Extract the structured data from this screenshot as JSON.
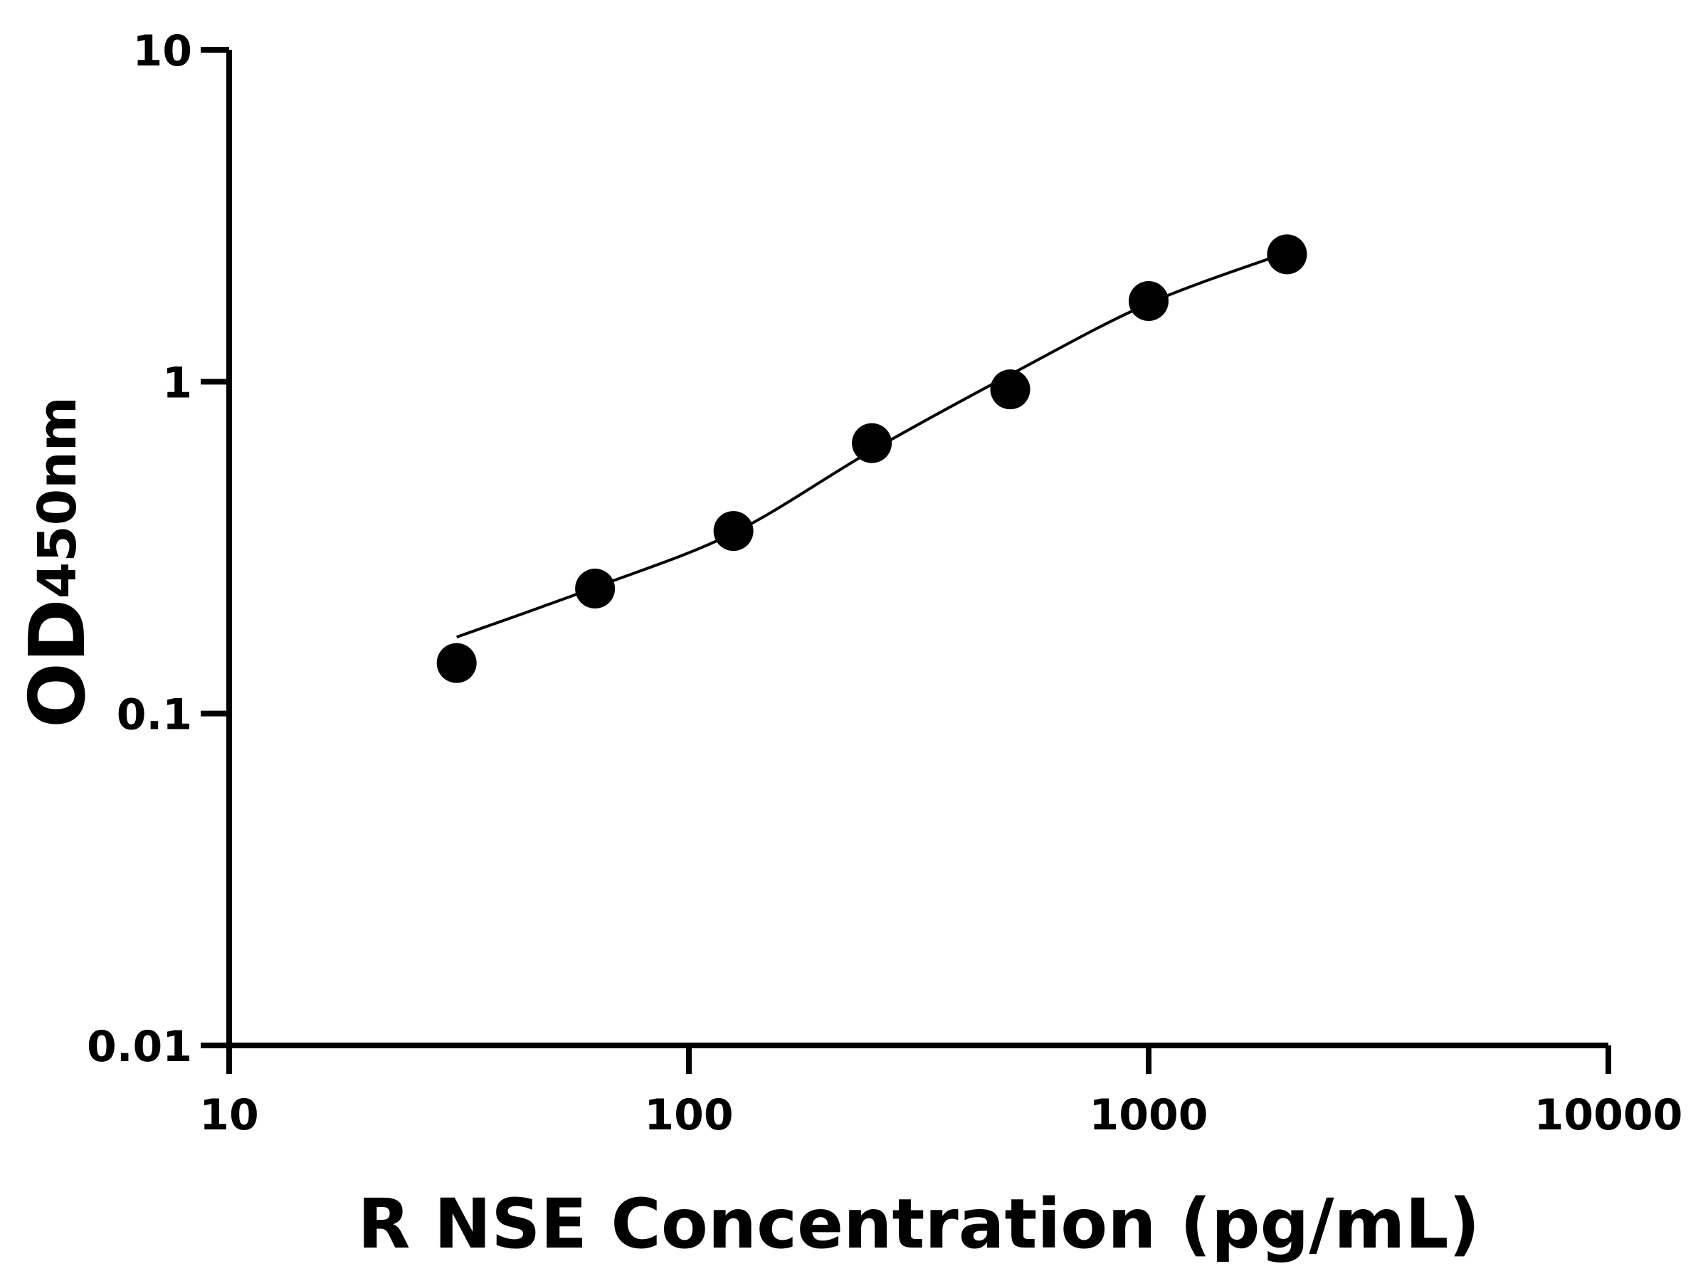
{
  "chart_data": {
    "type": "scatter",
    "x_label": "R NSE Concentration (pg/mL)",
    "y_label": "OD",
    "y_label_sub": "450nm",
    "xscale": "log",
    "yscale": "log",
    "xlim": [
      10,
      10000
    ],
    "xticks": [
      10,
      100,
      1000,
      10000
    ],
    "ylim": [
      0.01,
      10
    ],
    "yticks": [
      0.01,
      0.1,
      1,
      10
    ],
    "series": [
      {
        "color": "#000000",
        "marker": "circle",
        "x": [
          31.25,
          62.5,
          125,
          250,
          500,
          1000,
          2000
        ],
        "values": [
          0.142,
          0.238,
          0.355,
          0.653,
          0.948,
          1.75,
          2.42
        ]
      },
      {
        "color": "#000000",
        "style": "curve",
        "x": [
          31.25,
          62.5,
          125,
          250,
          500,
          1000,
          2000
        ],
        "values": [
          0.17,
          0.24,
          0.35,
          0.62,
          1.05,
          1.72,
          2.45
        ]
      }
    ]
  }
}
